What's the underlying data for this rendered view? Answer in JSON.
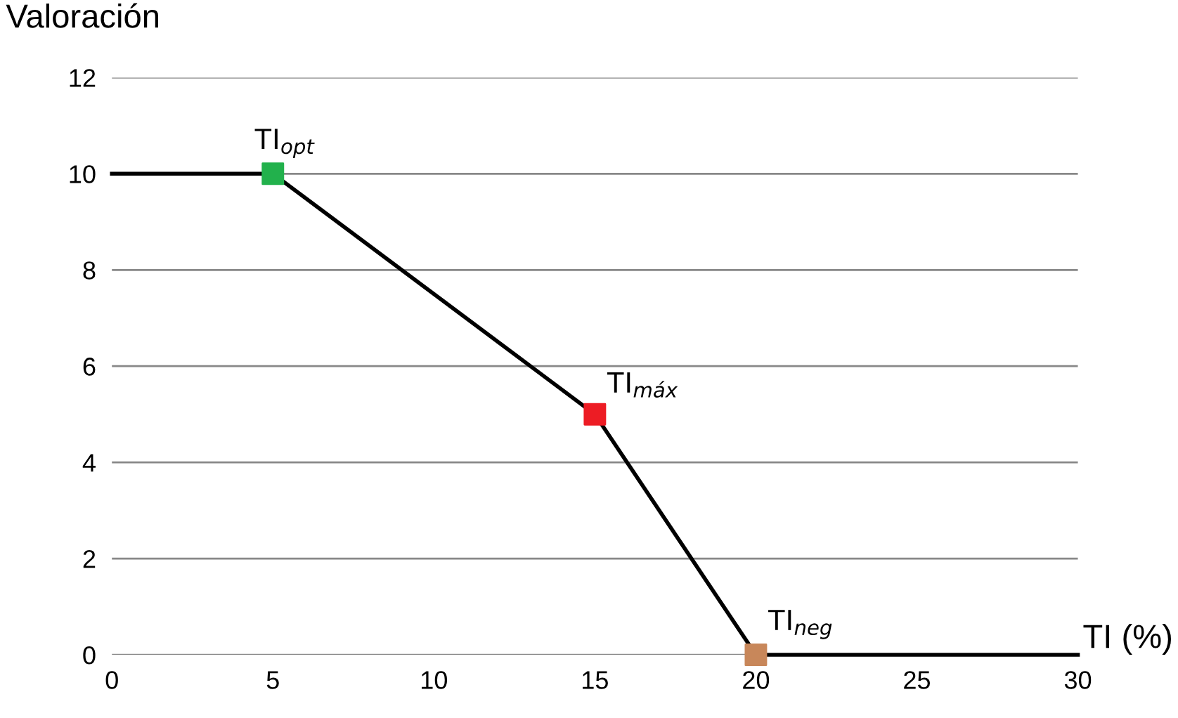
{
  "chart_data": {
    "type": "line",
    "ylabel": "Valoración",
    "xlabel": "TI (%)",
    "xlim": [
      0,
      30
    ],
    "xticks": [
      0,
      5,
      10,
      15,
      20,
      25,
      30
    ],
    "ylim": [
      0,
      12
    ],
    "yticks": [
      0,
      2,
      4,
      6,
      8,
      10,
      12
    ],
    "grid": "y",
    "series": [
      {
        "x": [
          0,
          5,
          15,
          20,
          30
        ],
        "values": [
          10,
          10,
          5,
          0,
          0
        ],
        "color": "#000000",
        "marker": "none",
        "line_style": "solid"
      },
      {
        "type": "scatter",
        "x": [
          5,
          15,
          20
        ],
        "values": [
          10,
          5,
          0
        ],
        "colors": [
          "#22b14c",
          "#ed1c24",
          "#c8875a"
        ],
        "marker": "square"
      }
    ],
    "annotations": [
      {
        "text": "TI$_{opt}$",
        "x": 5,
        "y": 10
      },
      {
        "text": "TI$_{máx}$",
        "x": 15,
        "y": 5
      },
      {
        "text": "TI$_{neg}$",
        "x": 20,
        "y": 0
      }
    ]
  }
}
